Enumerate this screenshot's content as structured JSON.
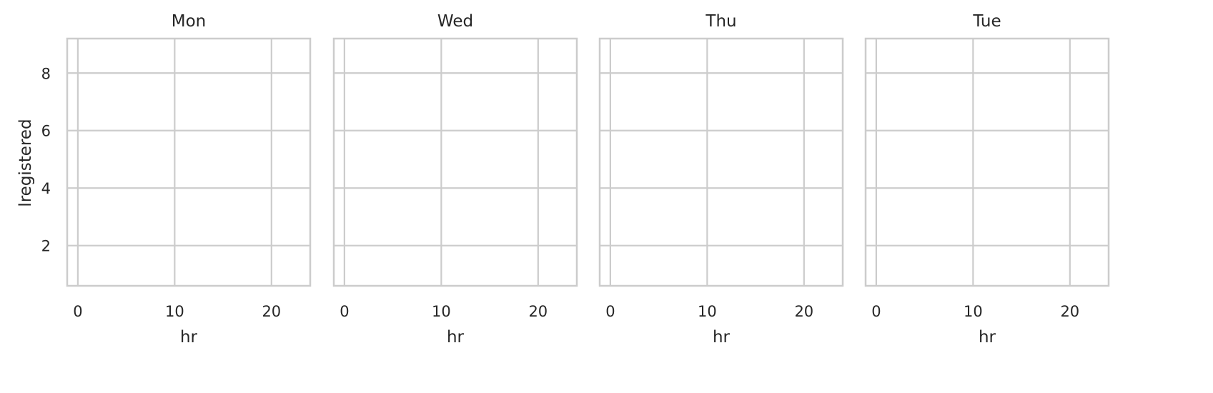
{
  "chart_data": {
    "type": "facet-grid",
    "shared_y": true,
    "shared_x": true,
    "ylabel": "lregistered",
    "xlabel": "hr",
    "xlim": [
      -1.1,
      24.0
    ],
    "ylim": [
      0.6,
      9.2
    ],
    "x_ticks": [
      0,
      10,
      20
    ],
    "y_ticks": [
      2,
      4,
      6,
      8
    ],
    "grid": true,
    "panels": [
      {
        "title": "Mon",
        "type": "scatter",
        "series": []
      },
      {
        "title": "Wed",
        "type": "scatter",
        "series": []
      },
      {
        "title": "Thu",
        "type": "scatter",
        "series": []
      },
      {
        "title": "Tue",
        "type": "scatter",
        "series": []
      }
    ]
  },
  "colors": {
    "grid": "#cccccc",
    "frame": "#cccccc",
    "text": "#262626",
    "background": "#ffffff"
  }
}
